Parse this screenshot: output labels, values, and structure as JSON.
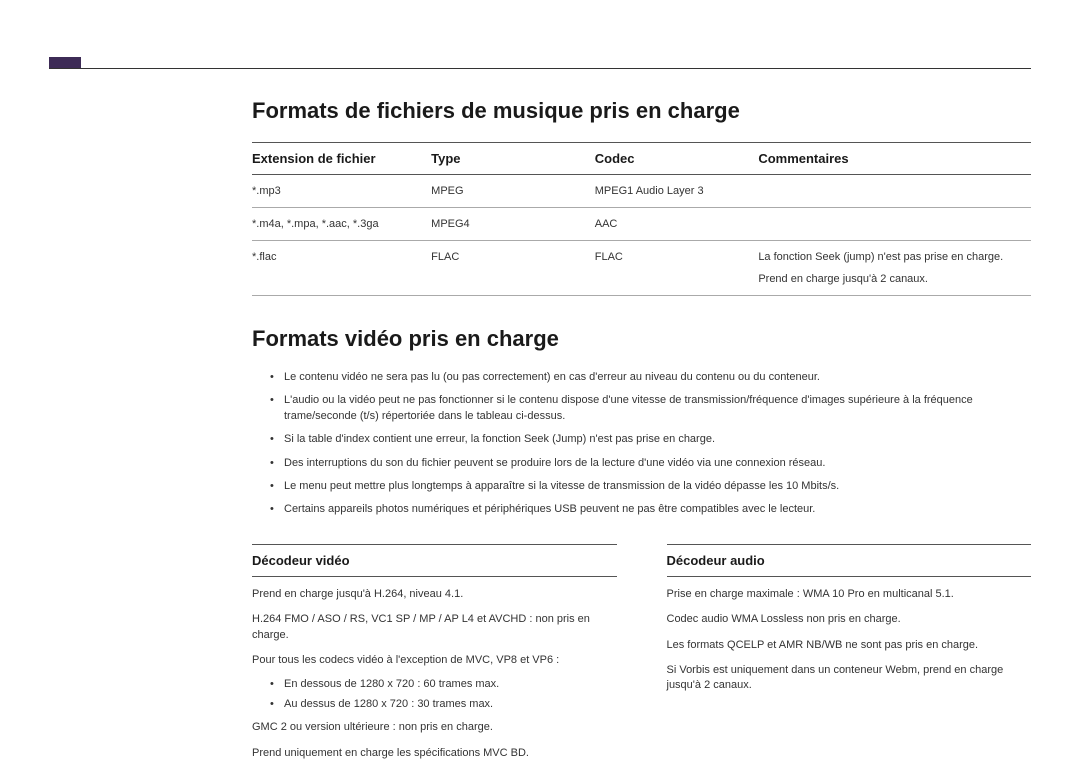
{
  "colors": {
    "accent": "#3d2b56",
    "text": "#1a1a1a",
    "body_text": "#333333",
    "rule_dark": "#555555",
    "rule_light": "#aaaaaa",
    "background": "#ffffff"
  },
  "music": {
    "heading": "Formats de fichiers de musique pris en charge",
    "columns": {
      "ext": "Extension de fichier",
      "type": "Type",
      "codec": "Codec",
      "comments": "Commentaires"
    },
    "rows": [
      {
        "ext": "*.mp3",
        "type": "MPEG",
        "codec": "MPEG1 Audio Layer 3",
        "comments": ""
      },
      {
        "ext": "*.m4a, *.mpa, *.aac, *.3ga",
        "type": "MPEG4",
        "codec": "AAC",
        "comments": ""
      },
      {
        "ext": "*.flac",
        "type": "FLAC",
        "codec": "FLAC",
        "comments_line1": "La fonction Seek (jump) n'est pas prise en charge.",
        "comments_line2": "Prend en charge jusqu'à 2 canaux."
      }
    ]
  },
  "video": {
    "heading": "Formats vidéo pris en charge",
    "bullets": [
      "Le contenu vidéo ne sera pas lu (ou pas correctement) en cas d'erreur au niveau du contenu ou du conteneur.",
      "L'audio ou la vidéo peut ne pas fonctionner si le contenu dispose d'une vitesse de transmission/fréquence d'images supérieure à la fréquence trame/seconde (t/s) répertoriée dans le tableau ci-dessus.",
      "Si la table d'index contient une erreur, la fonction Seek (Jump) n'est pas prise en charge.",
      "Des interruptions du son du fichier peuvent se produire lors de la lecture d'une vidéo via une connexion réseau.",
      "Le menu peut mettre plus longtemps à apparaître si la vitesse de transmission de la vidéo dépasse les 10 Mbits/s.",
      "Certains appareils photos numériques et périphériques USB peuvent ne pas être compatibles avec le lecteur."
    ],
    "decoder_video": {
      "title": "Décodeur vidéo",
      "p1": "Prend en charge jusqu'à H.264, niveau 4.1.",
      "p2": "H.264 FMO / ASO / RS, VC1 SP / MP / AP L4 et AVCHD : non pris en charge.",
      "p3": "Pour tous les codecs vidéo à l'exception de MVC, VP8 et VP6 :",
      "sub1": "En dessous de 1280 x 720 : 60 trames max.",
      "sub2": "Au dessus de 1280 x 720 : 30 trames max.",
      "p4": "GMC 2 ou version ultérieure : non pris en charge.",
      "p5": "Prend uniquement en charge les spécifications MVC BD."
    },
    "decoder_audio": {
      "title": "Décodeur audio",
      "p1": "Prise en charge maximale : WMA 10 Pro en multicanal 5.1.",
      "p2": "Codec audio WMA Lossless non pris en charge.",
      "p3": "Les formats QCELP et AMR NB/WB ne sont pas pris en charge.",
      "p4": "Si Vorbis est uniquement dans un conteneur Webm, prend en charge jusqu'à 2 canaux."
    }
  }
}
